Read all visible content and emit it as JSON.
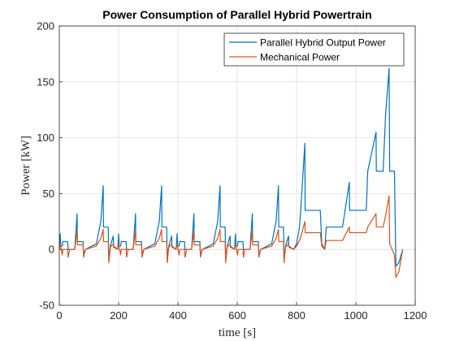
{
  "chart_data": {
    "type": "line",
    "title": "Power Consumption of Parallel Hybrid Powertrain",
    "xlabel": "time [s]",
    "ylabel": "Power [kW]",
    "x": [
      0,
      3,
      5,
      10,
      12,
      28,
      30,
      35,
      52,
      60,
      61,
      80,
      82,
      88,
      125,
      140,
      148,
      149,
      165,
      167,
      172,
      182,
      183,
      197,
      200,
      202,
      207,
      209,
      225,
      227,
      232,
      249,
      257,
      258,
      277,
      279,
      285,
      322,
      337,
      345,
      346,
      362,
      364,
      369,
      379,
      380,
      394,
      397,
      399,
      404,
      406,
      422,
      424,
      429,
      446,
      454,
      455,
      474,
      476,
      482,
      519,
      534,
      542,
      543,
      559,
      561,
      566,
      576,
      577,
      591,
      594,
      596,
      601,
      603,
      619,
      621,
      626,
      643,
      651,
      652,
      671,
      673,
      679,
      716,
      731,
      739,
      740,
      756,
      758,
      763,
      773,
      774,
      790,
      800,
      810,
      815,
      828,
      829,
      880,
      885,
      895,
      900,
      955,
      978,
      979,
      1035,
      1040,
      1068,
      1069,
      1092,
      1100,
      1112,
      1114,
      1130,
      1135,
      1145,
      1158
    ],
    "series": [
      {
        "name": "Parallel Hybrid Output Power",
        "color": "#0072bd",
        "values": [
          0,
          14,
          3,
          3,
          7,
          7,
          0,
          0,
          0,
          32,
          7,
          7,
          -5,
          0,
          5,
          25,
          57,
          20,
          20,
          -10,
          3,
          12,
          3,
          0,
          14,
          3,
          3,
          7,
          7,
          0,
          0,
          0,
          32,
          7,
          7,
          -5,
          0,
          5,
          25,
          57,
          20,
          20,
          -10,
          3,
          12,
          3,
          0,
          14,
          3,
          3,
          7,
          7,
          0,
          0,
          0,
          32,
          7,
          7,
          -5,
          0,
          5,
          25,
          57,
          20,
          20,
          -10,
          3,
          12,
          3,
          0,
          14,
          3,
          3,
          7,
          7,
          0,
          0,
          0,
          32,
          7,
          7,
          -5,
          0,
          5,
          25,
          57,
          20,
          20,
          -10,
          3,
          12,
          3,
          0,
          5,
          20,
          40,
          95,
          35,
          35,
          5,
          0,
          20,
          20,
          60,
          35,
          35,
          70,
          105,
          70,
          70,
          120,
          162,
          70,
          70,
          -15,
          -12,
          0
        ]
      },
      {
        "name": "Mechanical Power",
        "color": "#d95319",
        "values": [
          0,
          5,
          2,
          -5,
          0,
          0,
          -7,
          0,
          0,
          17,
          4,
          4,
          -7,
          0,
          3,
          10,
          18,
          7,
          7,
          -12,
          2,
          5,
          2,
          0,
          5,
          2,
          -5,
          0,
          0,
          -7,
          0,
          0,
          17,
          4,
          4,
          -7,
          0,
          3,
          10,
          18,
          7,
          7,
          -12,
          2,
          5,
          2,
          0,
          5,
          2,
          -5,
          0,
          0,
          -7,
          0,
          0,
          17,
          4,
          4,
          -7,
          0,
          3,
          10,
          18,
          7,
          7,
          -12,
          2,
          5,
          2,
          0,
          5,
          2,
          -5,
          0,
          0,
          -7,
          0,
          0,
          17,
          4,
          4,
          -7,
          0,
          3,
          10,
          18,
          7,
          7,
          -12,
          2,
          5,
          2,
          0,
          3,
          8,
          12,
          25,
          15,
          15,
          3,
          0,
          8,
          8,
          20,
          15,
          15,
          20,
          32,
          20,
          20,
          30,
          48,
          5,
          -5,
          -25,
          -20,
          0
        ]
      }
    ],
    "xlim": [
      0,
      1200
    ],
    "xticks": [
      0,
      200,
      400,
      600,
      800,
      1000,
      1200
    ],
    "ylim": [
      -50,
      200
    ],
    "yticks": [
      -50,
      0,
      50,
      100,
      150,
      200
    ],
    "grid": true,
    "legend": "top-right"
  }
}
